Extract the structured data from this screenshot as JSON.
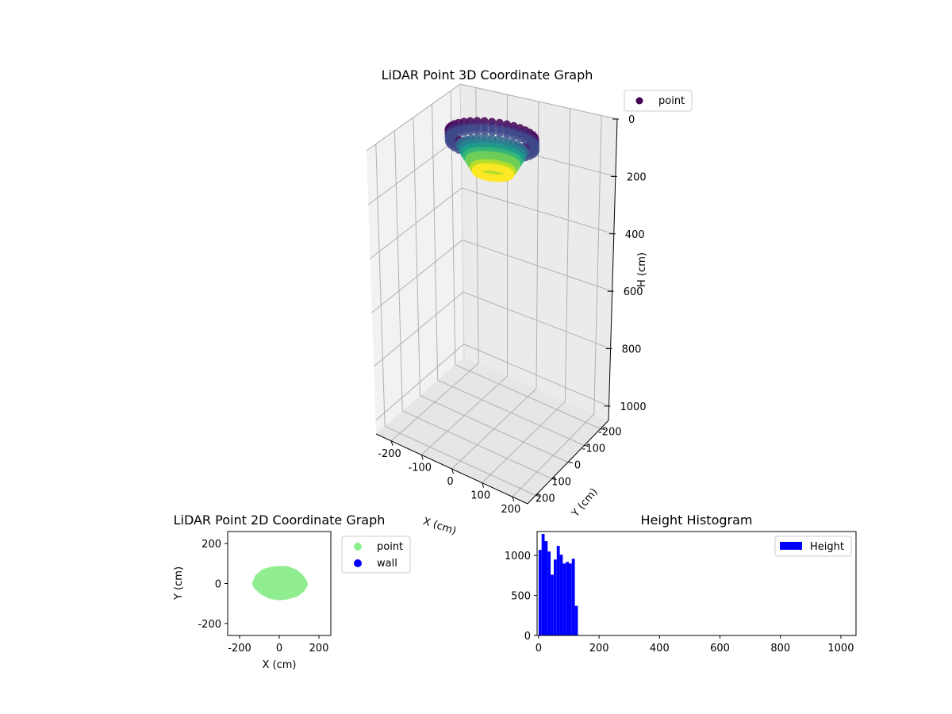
{
  "chart_data": [
    {
      "type": "scatter3d",
      "title": "LiDAR Point 3D Coordinate Graph",
      "xlabel": "X (cm)",
      "ylabel": "Y (cm)",
      "zlabel": "H (cm)",
      "xlim": [
        -250,
        250
      ],
      "ylim": [
        -250,
        250
      ],
      "zlim": [
        0,
        1050
      ],
      "x_ticks": [
        -200,
        -100,
        0,
        100,
        200
      ],
      "y_ticks": [
        -200,
        -100,
        0,
        100,
        200
      ],
      "z_ticks": [
        0,
        200,
        400,
        600,
        800,
        1000
      ],
      "z_inverted": true,
      "colormap": "viridis",
      "legend": [
        "point"
      ],
      "legend_location": "upper-right",
      "point_cloud": {
        "x_range": [
          -130,
          130
        ],
        "y_range": [
          -80,
          80
        ],
        "h_range": [
          0,
          140
        ]
      }
    },
    {
      "type": "scatter",
      "title": "LiDAR Point 2D Coordinate Graph",
      "xlabel": "X (cm)",
      "ylabel": "Y (cm)",
      "xlim": [
        -260,
        260
      ],
      "ylim": [
        -260,
        260
      ],
      "x_ticks": [
        -200,
        0,
        200
      ],
      "y_ticks": [
        -200,
        0,
        200
      ],
      "legend": [
        "point",
        "wall"
      ],
      "legend_location": "outside-right",
      "series": [
        {
          "name": "point",
          "color": "#90ee90",
          "outline": [
            [
              -125,
              0
            ],
            [
              -110,
              35
            ],
            [
              -80,
              60
            ],
            [
              -40,
              72
            ],
            [
              0,
              76
            ],
            [
              40,
              75
            ],
            [
              80,
              60
            ],
            [
              110,
              35
            ],
            [
              128,
              10
            ],
            [
              132,
              -5
            ],
            [
              118,
              -30
            ],
            [
              85,
              -55
            ],
            [
              40,
              -68
            ],
            [
              0,
              -72
            ],
            [
              -45,
              -65
            ],
            [
              -85,
              -45
            ],
            [
              -115,
              -20
            ]
          ]
        },
        {
          "name": "wall",
          "color": "#0000ff",
          "points": []
        }
      ]
    },
    {
      "type": "histogram",
      "title": "Height Histogram",
      "xlabel": "",
      "ylabel": "",
      "xlim": [
        -5,
        1050
      ],
      "ylim": [
        0,
        1300
      ],
      "x_ticks": [
        0,
        200,
        400,
        600,
        800,
        1000
      ],
      "y_ticks": [
        0,
        500,
        1000
      ],
      "legend": [
        "Height"
      ],
      "legend_location": "upper-right",
      "bar_color": "#0000ff",
      "bin_width": 10,
      "bins": [
        [
          0,
          1070
        ],
        [
          10,
          1270
        ],
        [
          20,
          1180
        ],
        [
          30,
          1050
        ],
        [
          40,
          760
        ],
        [
          50,
          950
        ],
        [
          60,
          1120
        ],
        [
          70,
          1010
        ],
        [
          80,
          900
        ],
        [
          90,
          920
        ],
        [
          100,
          900
        ],
        [
          110,
          960
        ],
        [
          120,
          370
        ]
      ]
    }
  ]
}
